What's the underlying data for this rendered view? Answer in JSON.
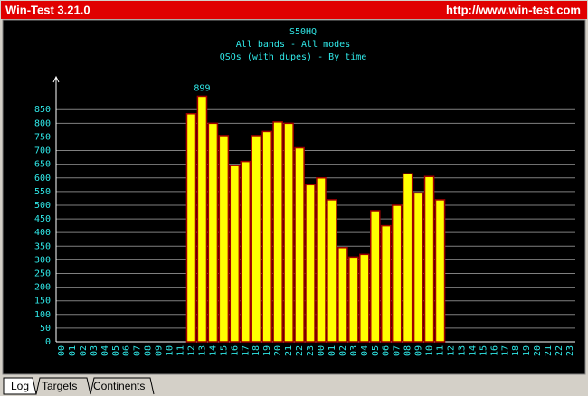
{
  "window": {
    "title": "Win-Test 3.21.0",
    "url": "http://www.win-test.com",
    "tabs": [
      "Log",
      "Targets",
      "Continents"
    ]
  },
  "chart_data": {
    "type": "bar",
    "title": "S50HQ",
    "subtitle": [
      "All bands - All modes",
      "QSOs (with dupes) - By time"
    ],
    "categories": [
      "00",
      "01",
      "02",
      "03",
      "04",
      "05",
      "06",
      "07",
      "08",
      "09",
      "10",
      "11",
      "12",
      "13",
      "14",
      "15",
      "16",
      "17",
      "18",
      "19",
      "20",
      "21",
      "22",
      "23",
      "00",
      "01",
      "02",
      "03",
      "04",
      "05",
      "06",
      "07",
      "08",
      "09",
      "10",
      "11",
      "12",
      "13",
      "14",
      "15",
      "16",
      "17",
      "18",
      "19",
      "20",
      "21",
      "22",
      "23"
    ],
    "series": [
      {
        "color": "#ffff00",
        "values": [
          null,
          null,
          null,
          null,
          null,
          null,
          null,
          null,
          null,
          null,
          null,
          null,
          835,
          899,
          800,
          755,
          645,
          660,
          755,
          770,
          805,
          800,
          710,
          575,
          600,
          520,
          345,
          310,
          320,
          480,
          425,
          500,
          615,
          545,
          605,
          520,
          null,
          null,
          null,
          null,
          null,
          null,
          null,
          null,
          null,
          null,
          null,
          null
        ]
      }
    ],
    "ylim": [
      0,
      970
    ],
    "yticks": [
      0,
      50,
      100,
      150,
      200,
      250,
      300,
      350,
      400,
      450,
      500,
      550,
      600,
      650,
      700,
      750,
      800,
      850
    ],
    "grid": true
  }
}
